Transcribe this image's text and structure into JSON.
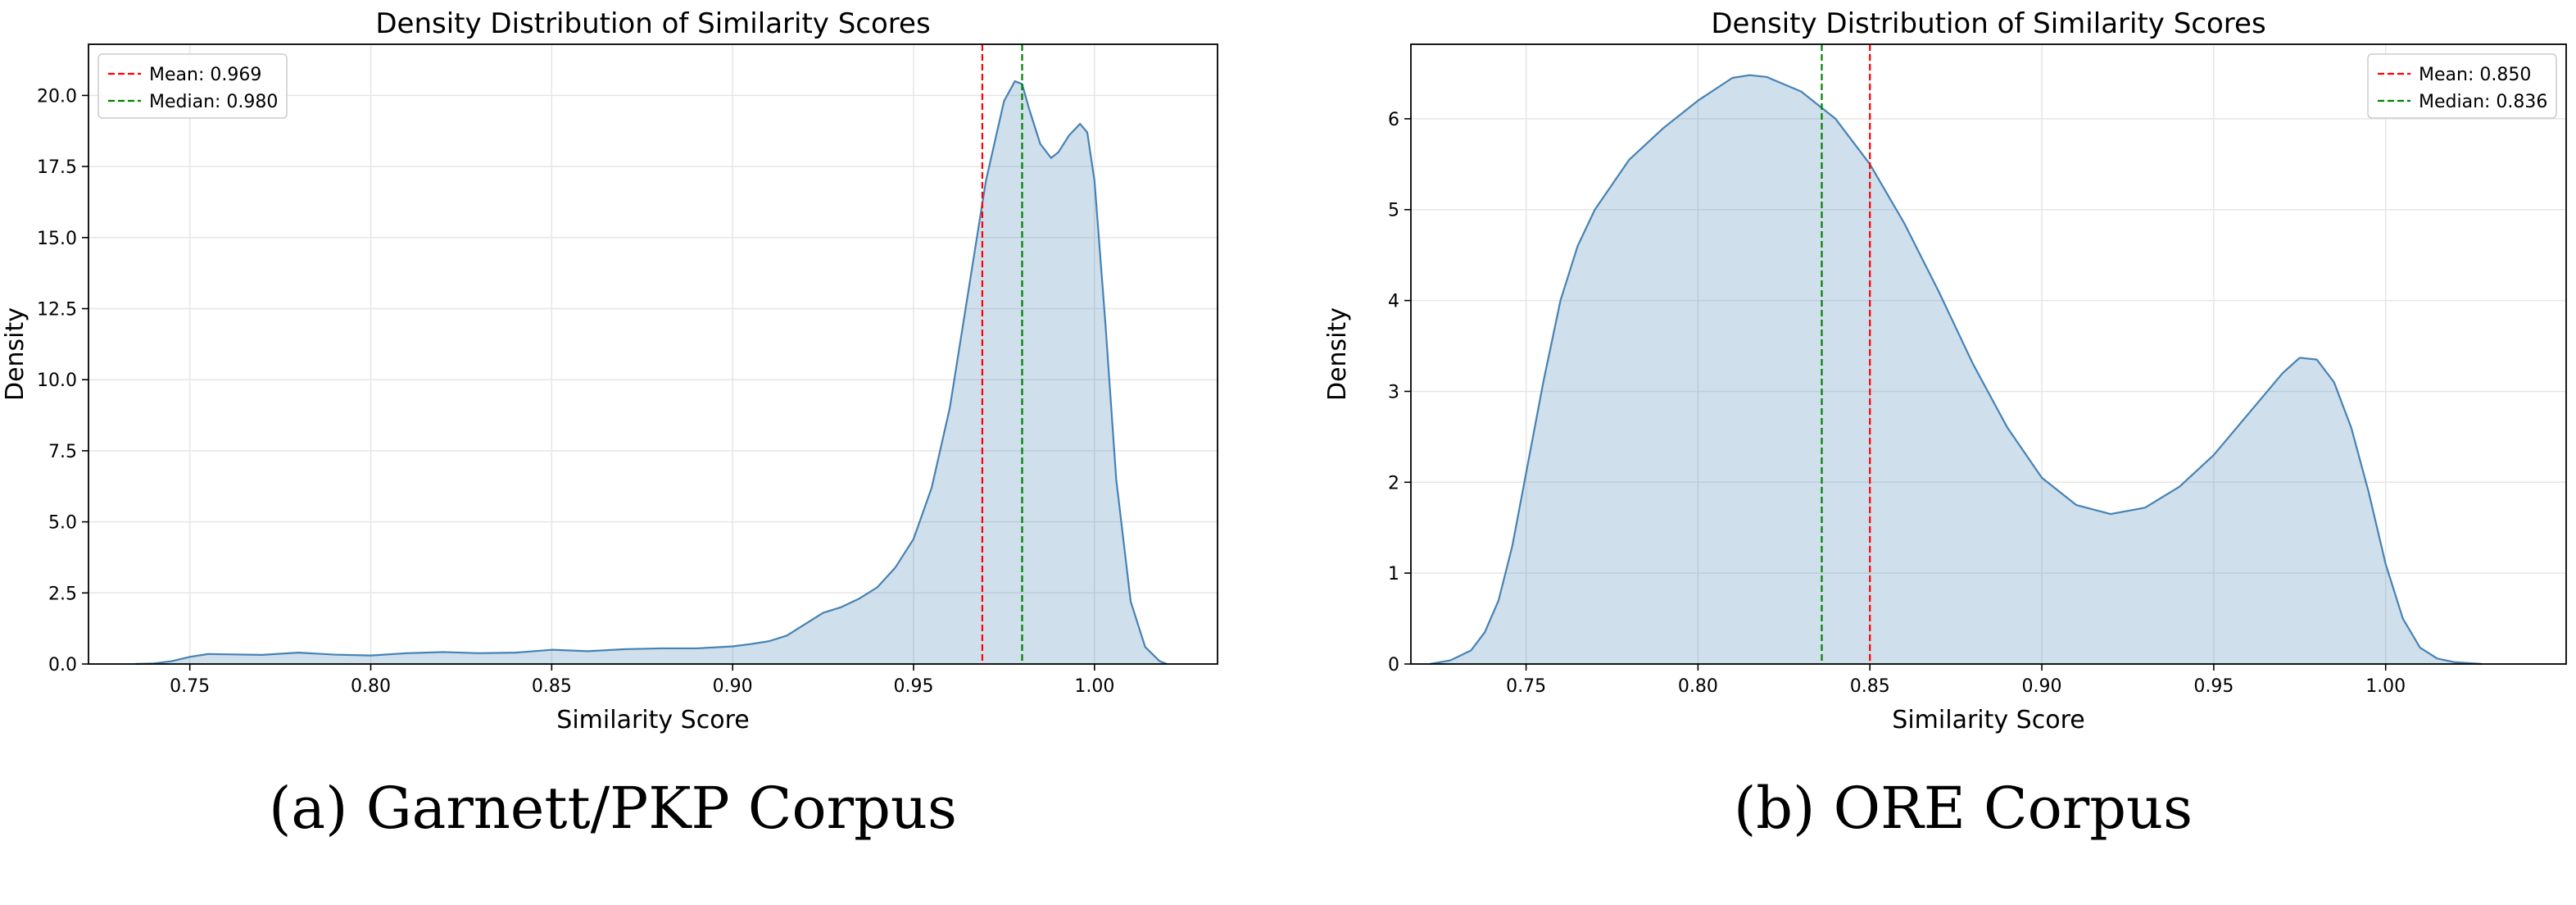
{
  "colors": {
    "line": "#4682b4",
    "fill": "#4682b4",
    "mean": "#ff0000",
    "median": "#008000",
    "grid": "#e6e6e6"
  },
  "chart_data": [
    {
      "type": "area",
      "title": "Density Distribution of Similarity Scores",
      "xlabel": "Similarity Score",
      "ylabel": "Density",
      "caption": "(a) Garnett/PKP Corpus",
      "xlim": [
        0.722,
        1.034
      ],
      "ylim": [
        0,
        21.8
      ],
      "xticks": [
        0.75,
        0.8,
        0.85,
        0.9,
        0.95,
        1.0
      ],
      "xtick_labels": [
        "0.75",
        "0.80",
        "0.85",
        "0.90",
        "0.95",
        "1.00"
      ],
      "yticks": [
        0,
        2.5,
        5,
        7.5,
        10,
        12.5,
        15,
        17.5,
        20
      ],
      "ytick_labels": [
        "0.0",
        "2.5",
        "5.0",
        "7.5",
        "10.0",
        "12.5",
        "15.0",
        "17.5",
        "20.0"
      ],
      "grid": true,
      "legend_position": "top-left",
      "vlines": [
        {
          "label": "Mean: 0.969",
          "x": 0.969,
          "kind": "mean"
        },
        {
          "label": "Median: 0.980",
          "x": 0.98,
          "kind": "median"
        }
      ],
      "series": [
        {
          "x": [
            0.735,
            0.74,
            0.745,
            0.75,
            0.755,
            0.76,
            0.77,
            0.78,
            0.79,
            0.8,
            0.81,
            0.82,
            0.83,
            0.84,
            0.85,
            0.86,
            0.87,
            0.88,
            0.89,
            0.9,
            0.905,
            0.91,
            0.915,
            0.92,
            0.925,
            0.93,
            0.935,
            0.94,
            0.945,
            0.95,
            0.955,
            0.96,
            0.965,
            0.97,
            0.975,
            0.978,
            0.98,
            0.982,
            0.985,
            0.988,
            0.99,
            0.993,
            0.996,
            0.998,
            1.0,
            1.003,
            1.006,
            1.01,
            1.014,
            1.018,
            1.02
          ],
          "y": [
            0.0,
            0.02,
            0.1,
            0.25,
            0.35,
            0.34,
            0.32,
            0.4,
            0.33,
            0.3,
            0.38,
            0.42,
            0.38,
            0.4,
            0.5,
            0.45,
            0.52,
            0.55,
            0.55,
            0.62,
            0.7,
            0.8,
            1.0,
            1.4,
            1.8,
            2.0,
            2.3,
            2.7,
            3.4,
            4.4,
            6.2,
            9.0,
            13.0,
            17.0,
            19.8,
            20.5,
            20.4,
            19.5,
            18.3,
            17.8,
            18.0,
            18.6,
            19.0,
            18.7,
            17.0,
            12.0,
            6.5,
            2.2,
            0.6,
            0.1,
            0.0
          ]
        }
      ]
    },
    {
      "type": "area",
      "title": "Density Distribution of Similarity Scores",
      "xlabel": "Similarity Score",
      "ylabel": "Density",
      "caption": "(b) ORE Corpus",
      "xlim": [
        0.7165,
        1.0525
      ],
      "ylim": [
        0,
        6.82
      ],
      "xticks": [
        0.75,
        0.8,
        0.85,
        0.9,
        0.95,
        1.0
      ],
      "xtick_labels": [
        "0.75",
        "0.80",
        "0.85",
        "0.90",
        "0.95",
        "1.00"
      ],
      "yticks": [
        0,
        1,
        2,
        3,
        4,
        5,
        6
      ],
      "ytick_labels": [
        "0",
        "1",
        "2",
        "3",
        "4",
        "5",
        "6"
      ],
      "grid": true,
      "legend_position": "top-right",
      "vlines": [
        {
          "label": "Mean: 0.850",
          "x": 0.85,
          "kind": "mean"
        },
        {
          "label": "Median: 0.836",
          "x": 0.836,
          "kind": "median"
        }
      ],
      "series": [
        {
          "x": [
            0.722,
            0.728,
            0.734,
            0.738,
            0.742,
            0.746,
            0.75,
            0.755,
            0.76,
            0.765,
            0.77,
            0.78,
            0.79,
            0.8,
            0.81,
            0.815,
            0.82,
            0.83,
            0.84,
            0.85,
            0.86,
            0.87,
            0.88,
            0.89,
            0.9,
            0.91,
            0.92,
            0.93,
            0.94,
            0.95,
            0.96,
            0.97,
            0.975,
            0.98,
            0.985,
            0.99,
            0.995,
            1.0,
            1.005,
            1.01,
            1.015,
            1.02,
            1.028
          ],
          "y": [
            0.0,
            0.04,
            0.15,
            0.35,
            0.7,
            1.3,
            2.1,
            3.1,
            4.0,
            4.6,
            5.0,
            5.55,
            5.9,
            6.2,
            6.45,
            6.48,
            6.46,
            6.3,
            6.0,
            5.5,
            4.85,
            4.1,
            3.3,
            2.6,
            2.05,
            1.75,
            1.65,
            1.72,
            1.95,
            2.3,
            2.75,
            3.2,
            3.37,
            3.35,
            3.1,
            2.6,
            1.9,
            1.1,
            0.5,
            0.18,
            0.06,
            0.02,
            0.0
          ]
        }
      ]
    }
  ]
}
